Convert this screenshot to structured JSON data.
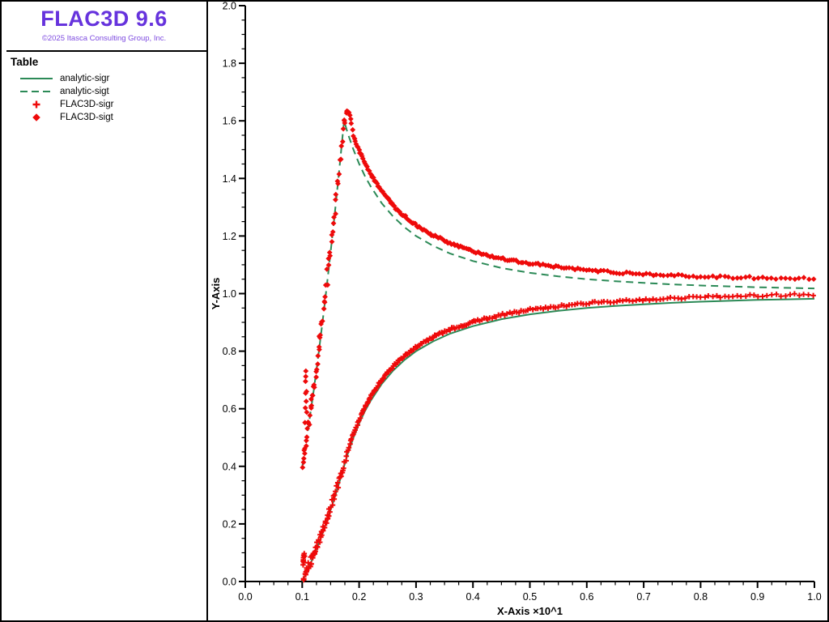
{
  "window": {
    "background": "#ffffff",
    "frame_color": "#000000"
  },
  "sidebar": {
    "logo_title": "FLAC3D 9.6",
    "logo_copyright": "©2025 Itasca Consulting Group, Inc.",
    "logo_color": "#6633dd",
    "copyright_color": "#7e4be0",
    "legend_header": "Table",
    "legend": [
      {
        "label": "analytic-sigr",
        "marker": "line-solid",
        "color": "#2c8a57"
      },
      {
        "label": "analytic-sigt",
        "marker": "line-dashed",
        "color": "#2c8a57"
      },
      {
        "label": "FLAC3D-sigr",
        "marker": "plus",
        "color": "#ee0a0a"
      },
      {
        "label": "FLAC3D-sigt",
        "marker": "diamond",
        "color": "#ee0a0a"
      }
    ]
  },
  "chart_data": {
    "type": "line",
    "title": "",
    "xlabel": "X-Axis ×10^1",
    "ylabel": "Y-Axis",
    "xlim": [
      0.0,
      1.0
    ],
    "ylim": [
      0.0,
      2.0
    ],
    "x_tick_labels": [
      "0.0",
      "0.1",
      "0.2",
      "0.3",
      "0.4",
      "0.5",
      "0.6",
      "0.7",
      "0.8",
      "0.9",
      "1.0"
    ],
    "y_tick_labels": [
      "0.0",
      "0.2",
      "0.4",
      "0.6",
      "0.8",
      "1.0",
      "1.2",
      "1.4",
      "1.6",
      "1.8",
      "2.0"
    ],
    "x_minor_step": 0.025,
    "y_minor_step": 0.05,
    "grid": false,
    "legend_position": "sidebar-left",
    "series": [
      {
        "name": "analytic-sigr",
        "type": "line",
        "style": "solid",
        "color": "#2c8a57",
        "width": 2,
        "points": [
          [
            0.1,
            0.0
          ],
          [
            0.105,
            0.02
          ],
          [
            0.11,
            0.042
          ],
          [
            0.115,
            0.064
          ],
          [
            0.12,
            0.088
          ],
          [
            0.125,
            0.112
          ],
          [
            0.13,
            0.137
          ],
          [
            0.135,
            0.164
          ],
          [
            0.14,
            0.191
          ],
          [
            0.145,
            0.22
          ],
          [
            0.15,
            0.249
          ],
          [
            0.155,
            0.279
          ],
          [
            0.16,
            0.311
          ],
          [
            0.165,
            0.343
          ],
          [
            0.17,
            0.377
          ],
          [
            0.1735,
            0.4
          ],
          [
            0.18,
            0.443
          ],
          [
            0.19,
            0.5
          ],
          [
            0.2,
            0.549
          ],
          [
            0.21,
            0.591
          ],
          [
            0.22,
            0.627
          ],
          [
            0.24,
            0.687
          ],
          [
            0.26,
            0.733
          ],
          [
            0.28,
            0.77
          ],
          [
            0.3,
            0.8
          ],
          [
            0.33,
            0.834
          ],
          [
            0.36,
            0.861
          ],
          [
            0.4,
            0.887
          ],
          [
            0.45,
            0.911
          ],
          [
            0.5,
            0.928
          ],
          [
            0.55,
            0.94
          ],
          [
            0.6,
            0.95
          ],
          [
            0.65,
            0.957
          ],
          [
            0.7,
            0.963
          ],
          [
            0.75,
            0.968
          ],
          [
            0.8,
            0.972
          ],
          [
            0.85,
            0.975
          ],
          [
            0.9,
            0.978
          ],
          [
            0.95,
            0.98
          ],
          [
            1.0,
            0.982
          ]
        ]
      },
      {
        "name": "analytic-sigt",
        "type": "line",
        "style": "dashed",
        "color": "#2c8a57",
        "width": 2,
        "points": [
          [
            0.1,
            0.398
          ],
          [
            0.105,
            0.46
          ],
          [
            0.11,
            0.524
          ],
          [
            0.115,
            0.591
          ],
          [
            0.12,
            0.661
          ],
          [
            0.125,
            0.735
          ],
          [
            0.13,
            0.811
          ],
          [
            0.135,
            0.89
          ],
          [
            0.14,
            0.972
          ],
          [
            0.145,
            1.057
          ],
          [
            0.15,
            1.145
          ],
          [
            0.155,
            1.237
          ],
          [
            0.16,
            1.331
          ],
          [
            0.165,
            1.428
          ],
          [
            0.17,
            1.528
          ],
          [
            0.1735,
            1.6
          ],
          [
            0.18,
            1.557
          ],
          [
            0.19,
            1.5
          ],
          [
            0.2,
            1.451
          ],
          [
            0.21,
            1.409
          ],
          [
            0.22,
            1.373
          ],
          [
            0.24,
            1.313
          ],
          [
            0.26,
            1.267
          ],
          [
            0.28,
            1.23
          ],
          [
            0.3,
            1.2
          ],
          [
            0.33,
            1.166
          ],
          [
            0.36,
            1.139
          ],
          [
            0.4,
            1.113
          ],
          [
            0.45,
            1.089
          ],
          [
            0.5,
            1.072
          ],
          [
            0.55,
            1.06
          ],
          [
            0.6,
            1.05
          ],
          [
            0.65,
            1.043
          ],
          [
            0.7,
            1.037
          ],
          [
            0.75,
            1.032
          ],
          [
            0.8,
            1.028
          ],
          [
            0.85,
            1.025
          ],
          [
            0.9,
            1.022
          ],
          [
            0.95,
            1.02
          ],
          [
            1.0,
            1.018
          ]
        ]
      },
      {
        "name": "FLAC3D-sigr",
        "type": "scatter",
        "marker": "plus",
        "color": "#ee0a0a",
        "n": 270,
        "x_start": 0.1012,
        "x_end": 0.9985,
        "jitter": 0.004,
        "plastic_jitter_mult": 3.5,
        "base": [
          [
            0.101,
            0.005
          ],
          [
            0.105,
            0.024
          ],
          [
            0.11,
            0.046
          ],
          [
            0.115,
            0.069
          ],
          [
            0.12,
            0.093
          ],
          [
            0.125,
            0.118
          ],
          [
            0.13,
            0.143
          ],
          [
            0.135,
            0.17
          ],
          [
            0.14,
            0.198
          ],
          [
            0.145,
            0.227
          ],
          [
            0.15,
            0.257
          ],
          [
            0.155,
            0.288
          ],
          [
            0.16,
            0.32
          ],
          [
            0.165,
            0.352
          ],
          [
            0.17,
            0.386
          ],
          [
            0.175,
            0.417
          ],
          [
            0.18,
            0.456
          ],
          [
            0.19,
            0.514
          ],
          [
            0.2,
            0.563
          ],
          [
            0.21,
            0.605
          ],
          [
            0.22,
            0.642
          ],
          [
            0.24,
            0.701
          ],
          [
            0.26,
            0.748
          ],
          [
            0.28,
            0.785
          ],
          [
            0.3,
            0.815
          ],
          [
            0.33,
            0.849
          ],
          [
            0.36,
            0.876
          ],
          [
            0.4,
            0.902
          ],
          [
            0.45,
            0.926
          ],
          [
            0.5,
            0.944
          ],
          [
            0.55,
            0.956
          ],
          [
            0.6,
            0.966
          ],
          [
            0.65,
            0.973
          ],
          [
            0.7,
            0.979
          ],
          [
            0.75,
            0.984
          ],
          [
            0.8,
            0.988
          ],
          [
            0.85,
            0.991
          ],
          [
            0.9,
            0.993
          ],
          [
            0.95,
            0.995
          ],
          [
            1.0,
            0.997
          ]
        ],
        "outliers": [
          [
            0.1015,
            0.058
          ],
          [
            0.102,
            0.075
          ],
          [
            0.1026,
            0.091
          ],
          [
            0.1031,
            0.066
          ],
          [
            0.1022,
            0.083
          ],
          [
            0.1036,
            0.097
          ],
          [
            0.1018,
            0.07
          ],
          [
            0.104,
            0.088
          ]
        ]
      },
      {
        "name": "FLAC3D-sigt",
        "type": "scatter",
        "marker": "diamond",
        "color": "#ee0a0a",
        "n": 270,
        "x_start": 0.1012,
        "x_end": 0.9985,
        "jitter": 0.004,
        "plastic_jitter_mult": 5.5,
        "base": [
          [
            0.101,
            0.405
          ],
          [
            0.105,
            0.468
          ],
          [
            0.11,
            0.534
          ],
          [
            0.115,
            0.601
          ],
          [
            0.12,
            0.672
          ],
          [
            0.125,
            0.746
          ],
          [
            0.13,
            0.822
          ],
          [
            0.135,
            0.901
          ],
          [
            0.14,
            0.984
          ],
          [
            0.145,
            1.069
          ],
          [
            0.15,
            1.158
          ],
          [
            0.155,
            1.249
          ],
          [
            0.16,
            1.344
          ],
          [
            0.165,
            1.441
          ],
          [
            0.17,
            1.54
          ],
          [
            0.174,
            1.601
          ],
          [
            0.178,
            1.628
          ],
          [
            0.181,
            1.634
          ],
          [
            0.185,
            1.612
          ],
          [
            0.19,
            1.547
          ],
          [
            0.2,
            1.496
          ],
          [
            0.21,
            1.452
          ],
          [
            0.22,
            1.415
          ],
          [
            0.24,
            1.354
          ],
          [
            0.26,
            1.306
          ],
          [
            0.28,
            1.268
          ],
          [
            0.3,
            1.237
          ],
          [
            0.33,
            1.202
          ],
          [
            0.36,
            1.174
          ],
          [
            0.4,
            1.147
          ],
          [
            0.45,
            1.122
          ],
          [
            0.5,
            1.105
          ],
          [
            0.55,
            1.092
          ],
          [
            0.6,
            1.082
          ],
          [
            0.65,
            1.074
          ],
          [
            0.7,
            1.068
          ],
          [
            0.75,
            1.063
          ],
          [
            0.8,
            1.059
          ],
          [
            0.85,
            1.057
          ],
          [
            0.9,
            1.055
          ],
          [
            0.95,
            1.053
          ],
          [
            1.0,
            1.052
          ]
        ],
        "outliers": [
          [
            0.1048,
            0.552
          ],
          [
            0.1055,
            0.603
          ],
          [
            0.106,
            0.654
          ],
          [
            0.1064,
            0.731
          ],
          [
            0.1058,
            0.695
          ],
          [
            0.107,
            0.626
          ],
          [
            0.1075,
            0.66
          ],
          [
            0.108,
            0.588
          ],
          [
            0.1062,
            0.712
          ]
        ]
      }
    ]
  }
}
